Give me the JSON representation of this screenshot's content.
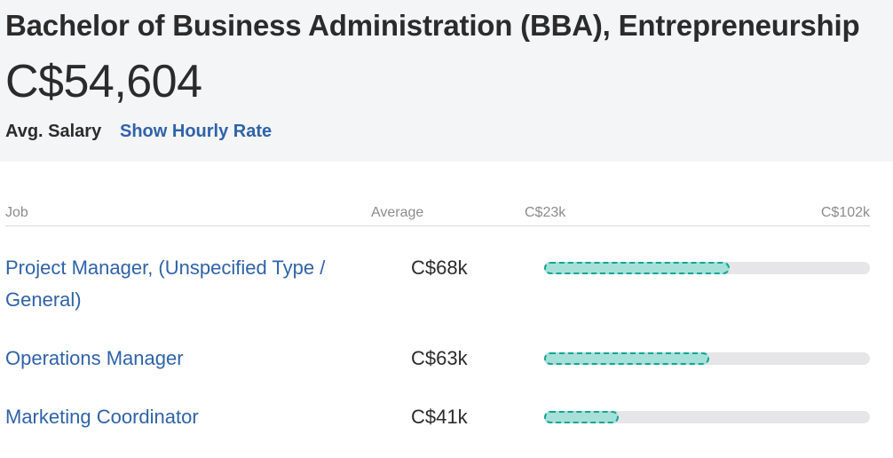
{
  "header": {
    "title": "Bachelor of Business Administration (BBA), Entrepreneurship",
    "salary_value": "C$54,604",
    "salary_label": "Avg. Salary",
    "hourly_link": "Show Hourly Rate"
  },
  "table": {
    "columns": {
      "job": "Job",
      "average": "Average",
      "range_min": "C$23k",
      "range_max": "C$102k"
    },
    "range": {
      "min": 23,
      "max": 102
    },
    "rows": [
      {
        "job": "Project Manager, (Unspecified Type / General)",
        "average": "C$68k",
        "bar_start": 23,
        "bar_end": 68
      },
      {
        "job": "Operations Manager",
        "average": "C$63k",
        "bar_start": 23,
        "bar_end": 63
      },
      {
        "job": "Marketing Coordinator",
        "average": "C$41k",
        "bar_start": 23,
        "bar_end": 41
      }
    ]
  },
  "colors": {
    "link": "#2f63a8",
    "bar_fill": "#a6e0d8",
    "bar_border": "#12a594",
    "bar_track": "#e6e6e8"
  }
}
